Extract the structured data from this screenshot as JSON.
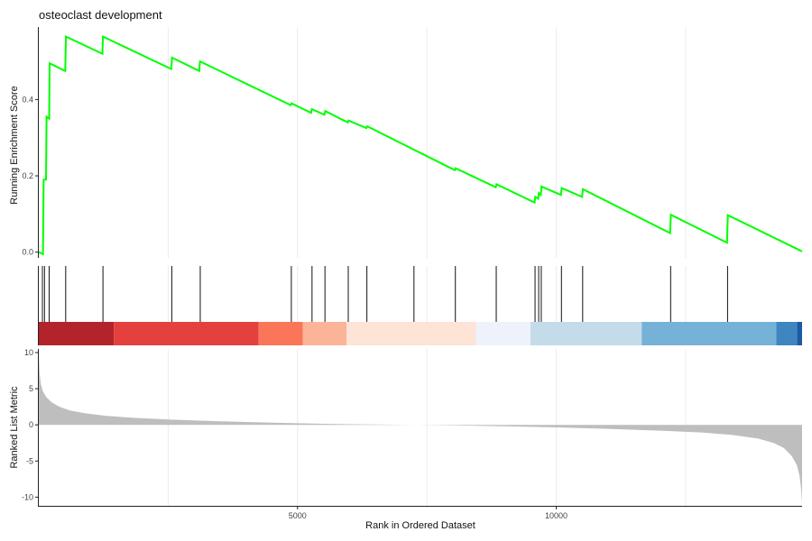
{
  "chart_data": {
    "type": "line",
    "title": "osteoclast development",
    "xlabel": "Rank in Ordered Dataset",
    "x_ticks": [
      5000,
      10000
    ],
    "xlim": [
      0,
      14750
    ],
    "running_score": {
      "ylabel": "Running Enrichment Score",
      "ylim": [
        -0.015,
        0.59
      ],
      "y_ticks": [
        0.0,
        0.2,
        0.4
      ],
      "y_tick_labels": [
        "0.0",
        "0.2",
        "0.4"
      ],
      "color": "#00ff00",
      "points": [
        [
          0,
          0.0
        ],
        [
          80,
          -0.005
        ],
        [
          95,
          0.19
        ],
        [
          140,
          0.19
        ],
        [
          150,
          0.355
        ],
        [
          200,
          0.35
        ],
        [
          210,
          0.495
        ],
        [
          510,
          0.475
        ],
        [
          525,
          0.565
        ],
        [
          1230,
          0.52
        ],
        [
          1240,
          0.565
        ],
        [
          2560,
          0.48
        ],
        [
          2575,
          0.51
        ],
        [
          3100,
          0.475
        ],
        [
          3115,
          0.5
        ],
        [
          4870,
          0.385
        ],
        [
          4885,
          0.39
        ],
        [
          5260,
          0.365
        ],
        [
          5275,
          0.375
        ],
        [
          5520,
          0.36
        ],
        [
          5535,
          0.37
        ],
        [
          5970,
          0.34
        ],
        [
          5985,
          0.345
        ],
        [
          6330,
          0.325
        ],
        [
          6345,
          0.33
        ],
        [
          8040,
          0.215
        ],
        [
          8055,
          0.22
        ],
        [
          8830,
          0.17
        ],
        [
          8845,
          0.178
        ],
        [
          9580,
          0.13
        ],
        [
          9595,
          0.145
        ],
        [
          9650,
          0.14
        ],
        [
          9665,
          0.155
        ],
        [
          9700,
          0.15
        ],
        [
          9715,
          0.172
        ],
        [
          10090,
          0.15
        ],
        [
          10105,
          0.168
        ],
        [
          10500,
          0.145
        ],
        [
          10515,
          0.165
        ],
        [
          12200,
          0.05
        ],
        [
          12215,
          0.098
        ],
        [
          13300,
          0.025
        ],
        [
          13315,
          0.097
        ],
        [
          14750,
          0.002
        ]
      ]
    },
    "hits": [
      70,
      110,
      200,
      520,
      1240,
      2570,
      3120,
      4880,
      5280,
      5530,
      5980,
      6340,
      7250,
      8050,
      8840,
      9590,
      9660,
      9710,
      10100,
      10510,
      12210,
      13310
    ],
    "rank_bands": [
      {
        "start": 0,
        "end": 1450,
        "color": "#b2242a"
      },
      {
        "start": 1450,
        "end": 4250,
        "color": "#e4403e"
      },
      {
        "start": 4250,
        "end": 5100,
        "color": "#fb7558"
      },
      {
        "start": 5100,
        "end": 5950,
        "color": "#fcb499"
      },
      {
        "start": 5950,
        "end": 8450,
        "color": "#fee3d7"
      },
      {
        "start": 8450,
        "end": 9500,
        "color": "#eef3fb"
      },
      {
        "start": 9500,
        "end": 11650,
        "color": "#c4dbe9"
      },
      {
        "start": 11650,
        "end": 14250,
        "color": "#76b2d8"
      },
      {
        "start": 14250,
        "end": 14650,
        "color": "#3f86c1"
      },
      {
        "start": 14650,
        "end": 14750,
        "color": "#1d5aa5"
      }
    ],
    "ranked_list": {
      "ylabel": "Ranked List Metric",
      "ylim": [
        -11.2,
        10.5
      ],
      "y_ticks": [
        -10,
        -5,
        0,
        5,
        10
      ],
      "y_tick_labels": [
        "-10",
        "-5",
        "0",
        "5",
        "10"
      ],
      "fill_color": "#bebebe",
      "points": [
        [
          0,
          10.3
        ],
        [
          15,
          7.2
        ],
        [
          40,
          5.6
        ],
        [
          80,
          4.6
        ],
        [
          150,
          3.8
        ],
        [
          250,
          3.1
        ],
        [
          400,
          2.5
        ],
        [
          600,
          2.0
        ],
        [
          900,
          1.6
        ],
        [
          1300,
          1.25
        ],
        [
          1800,
          1.0
        ],
        [
          2500,
          0.75
        ],
        [
          3500,
          0.5
        ],
        [
          4500,
          0.3
        ],
        [
          5500,
          0.15
        ],
        [
          6500,
          0.05
        ],
        [
          7300,
          0.0
        ],
        [
          8000,
          -0.08
        ],
        [
          9000,
          -0.2
        ],
        [
          10000,
          -0.35
        ],
        [
          11000,
          -0.55
        ],
        [
          12000,
          -0.8
        ],
        [
          12800,
          -1.05
        ],
        [
          13400,
          -1.4
        ],
        [
          13900,
          -1.9
        ],
        [
          14200,
          -2.5
        ],
        [
          14400,
          -3.2
        ],
        [
          14550,
          -4.3
        ],
        [
          14650,
          -5.6
        ],
        [
          14700,
          -7.0
        ],
        [
          14730,
          -8.8
        ],
        [
          14750,
          -10.8
        ]
      ]
    },
    "grid": true,
    "legend": "none"
  }
}
